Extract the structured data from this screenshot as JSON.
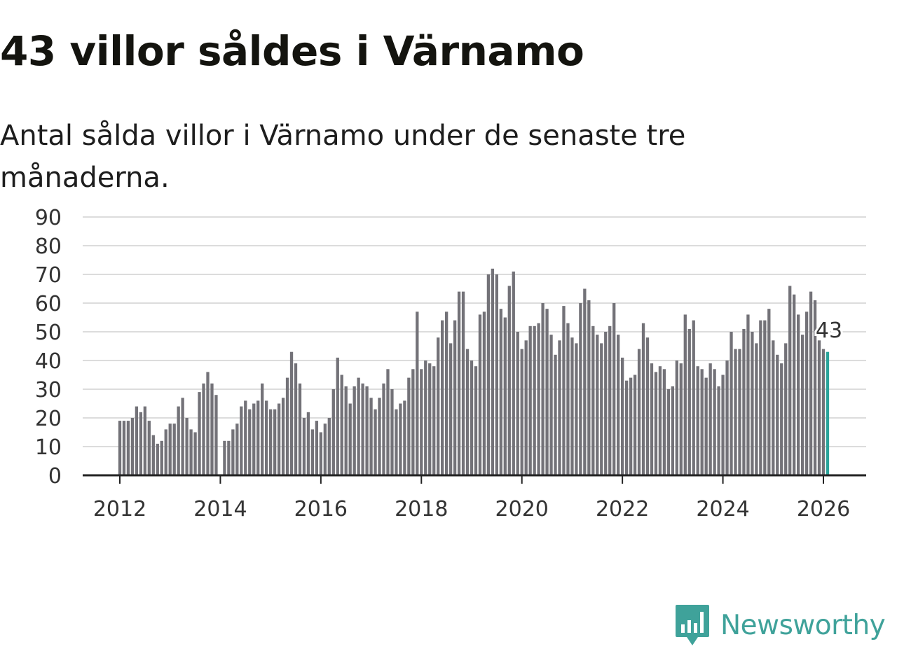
{
  "title": "43 villor såldes i Värnamo",
  "subtitle": "Antal sålda villor i Värnamo under de senaste tre månaderna.",
  "brand": "Newsworthy",
  "colors": {
    "bar": "#737278",
    "highlight": "#2aa39a",
    "grid": "#dcdcdc",
    "axis": "#222222",
    "brand": "#3fa29a"
  },
  "chart_data": {
    "type": "bar",
    "title": "43 villor såldes i Värnamo",
    "xlabel": "",
    "ylabel": "",
    "ylim": [
      0,
      90
    ],
    "y_ticks": [
      0,
      10,
      20,
      30,
      40,
      50,
      60,
      70,
      80,
      90
    ],
    "x_ticks": [
      2012,
      2014,
      2016,
      2018,
      2020,
      2022,
      2024,
      2026
    ],
    "start": {
      "year": 2012,
      "month": 1
    },
    "highlight_label": "43",
    "values": [
      19,
      19,
      19,
      20,
      24,
      22,
      24,
      19,
      14,
      11,
      12,
      16,
      18,
      18,
      24,
      27,
      20,
      16,
      15,
      29,
      32,
      36,
      32,
      28,
      null,
      12,
      12,
      16,
      18,
      24,
      26,
      23,
      25,
      26,
      32,
      26,
      23,
      23,
      25,
      27,
      34,
      43,
      39,
      32,
      20,
      22,
      16,
      19,
      15,
      18,
      20,
      30,
      41,
      35,
      31,
      25,
      31,
      34,
      32,
      31,
      27,
      23,
      27,
      32,
      37,
      30,
      23,
      25,
      26,
      34,
      37,
      57,
      37,
      40,
      39,
      38,
      48,
      54,
      57,
      46,
      54,
      64,
      64,
      44,
      40,
      38,
      56,
      57,
      70,
      72,
      70,
      58,
      55,
      66,
      71,
      50,
      44,
      47,
      52,
      52,
      53,
      60,
      58,
      49,
      42,
      47,
      59,
      53,
      48,
      46,
      60,
      65,
      61,
      52,
      49,
      46,
      50,
      52,
      60,
      49,
      41,
      33,
      34,
      35,
      44,
      53,
      48,
      39,
      36,
      38,
      37,
      30,
      31,
      40,
      39,
      56,
      51,
      54,
      38,
      37,
      34,
      39,
      37,
      31,
      35,
      40,
      50,
      44,
      44,
      51,
      56,
      50,
      46,
      54,
      54,
      58,
      47,
      42,
      39,
      46,
      66,
      63,
      56,
      49,
      57,
      64,
      61,
      47,
      44,
      43
    ]
  }
}
